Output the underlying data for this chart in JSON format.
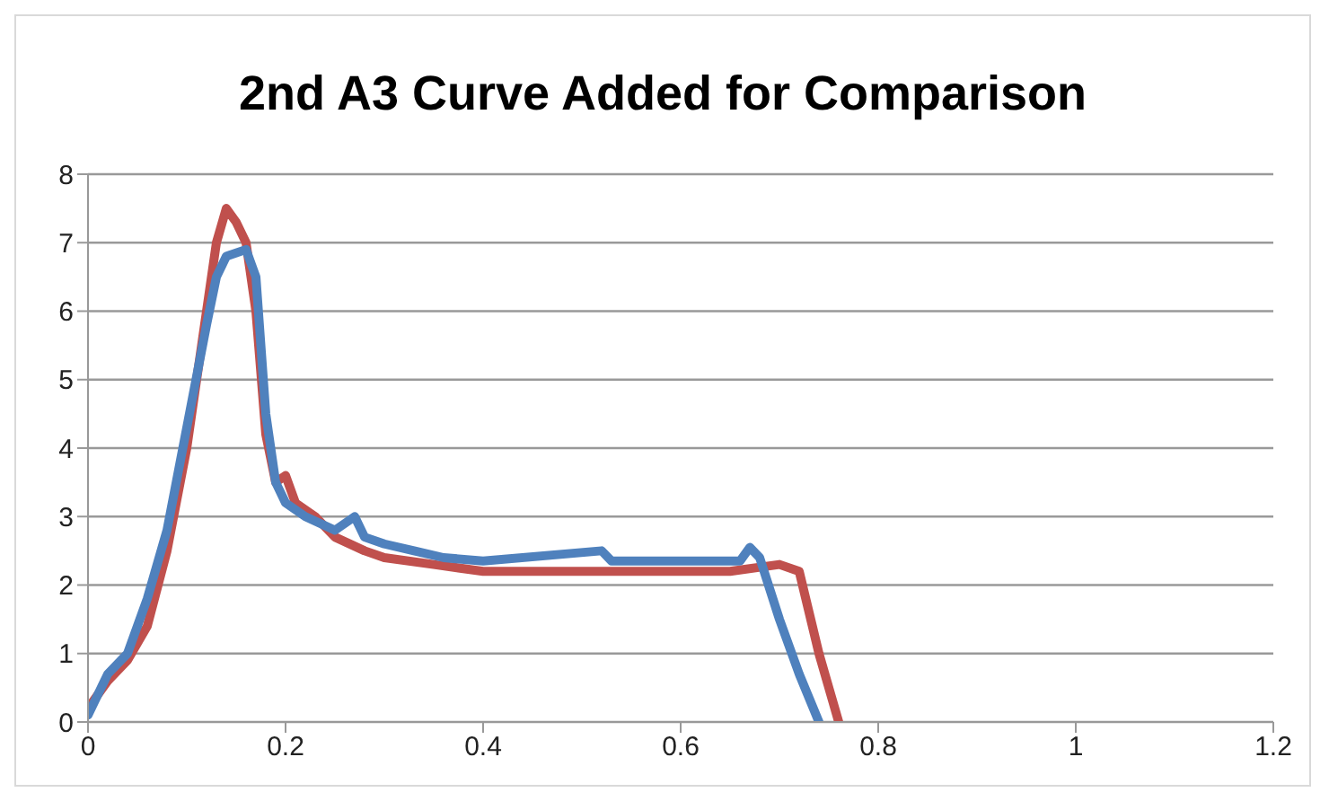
{
  "chart_data": {
    "type": "line",
    "title": "2nd A3 Curve Added for Comparison",
    "xlim": [
      0,
      1.2
    ],
    "xticks": [
      0,
      0.2,
      0.4,
      0.6,
      0.8,
      1,
      1.2
    ],
    "ylim": [
      0,
      8
    ],
    "yticks": [
      0,
      1,
      2,
      3,
      4,
      5,
      6,
      7,
      8
    ],
    "grid": "y",
    "legend": false,
    "marker": "none",
    "line_style": "solid",
    "series": [
      {
        "color": "#c0504d",
        "x": [
          0,
          0.02,
          0.04,
          0.06,
          0.08,
          0.1,
          0.12,
          0.13,
          0.14,
          0.15,
          0.16,
          0.17,
          0.18,
          0.19,
          0.2,
          0.21,
          0.23,
          0.25,
          0.28,
          0.3,
          0.35,
          0.4,
          0.5,
          0.6,
          0.65,
          0.7,
          0.72,
          0.74,
          0.76
        ],
        "values": [
          0.2,
          0.6,
          0.9,
          1.4,
          2.5,
          4,
          6,
          7,
          7.5,
          7.3,
          7,
          6,
          4.2,
          3.5,
          3.6,
          3.2,
          3,
          2.7,
          2.5,
          2.4,
          2.3,
          2.2,
          2.2,
          2.2,
          2.2,
          2.3,
          2.2,
          1,
          0
        ]
      },
      {
        "color": "#4f81bd",
        "x": [
          0,
          0.02,
          0.04,
          0.06,
          0.08,
          0.1,
          0.12,
          0.13,
          0.14,
          0.16,
          0.17,
          0.18,
          0.19,
          0.2,
          0.22,
          0.25,
          0.27,
          0.28,
          0.3,
          0.33,
          0.36,
          0.4,
          0.52,
          0.53,
          0.6,
          0.66,
          0.67,
          0.68,
          0.7,
          0.72,
          0.74
        ],
        "values": [
          0.1,
          0.7,
          1,
          1.8,
          2.8,
          4.3,
          5.8,
          6.5,
          6.8,
          6.9,
          6.5,
          4.5,
          3.5,
          3.2,
          3,
          2.8,
          3,
          2.7,
          2.6,
          2.5,
          2.4,
          2.35,
          2.5,
          2.35,
          2.35,
          2.35,
          2.55,
          2.4,
          1.5,
          0.7,
          0
        ]
      }
    ]
  }
}
